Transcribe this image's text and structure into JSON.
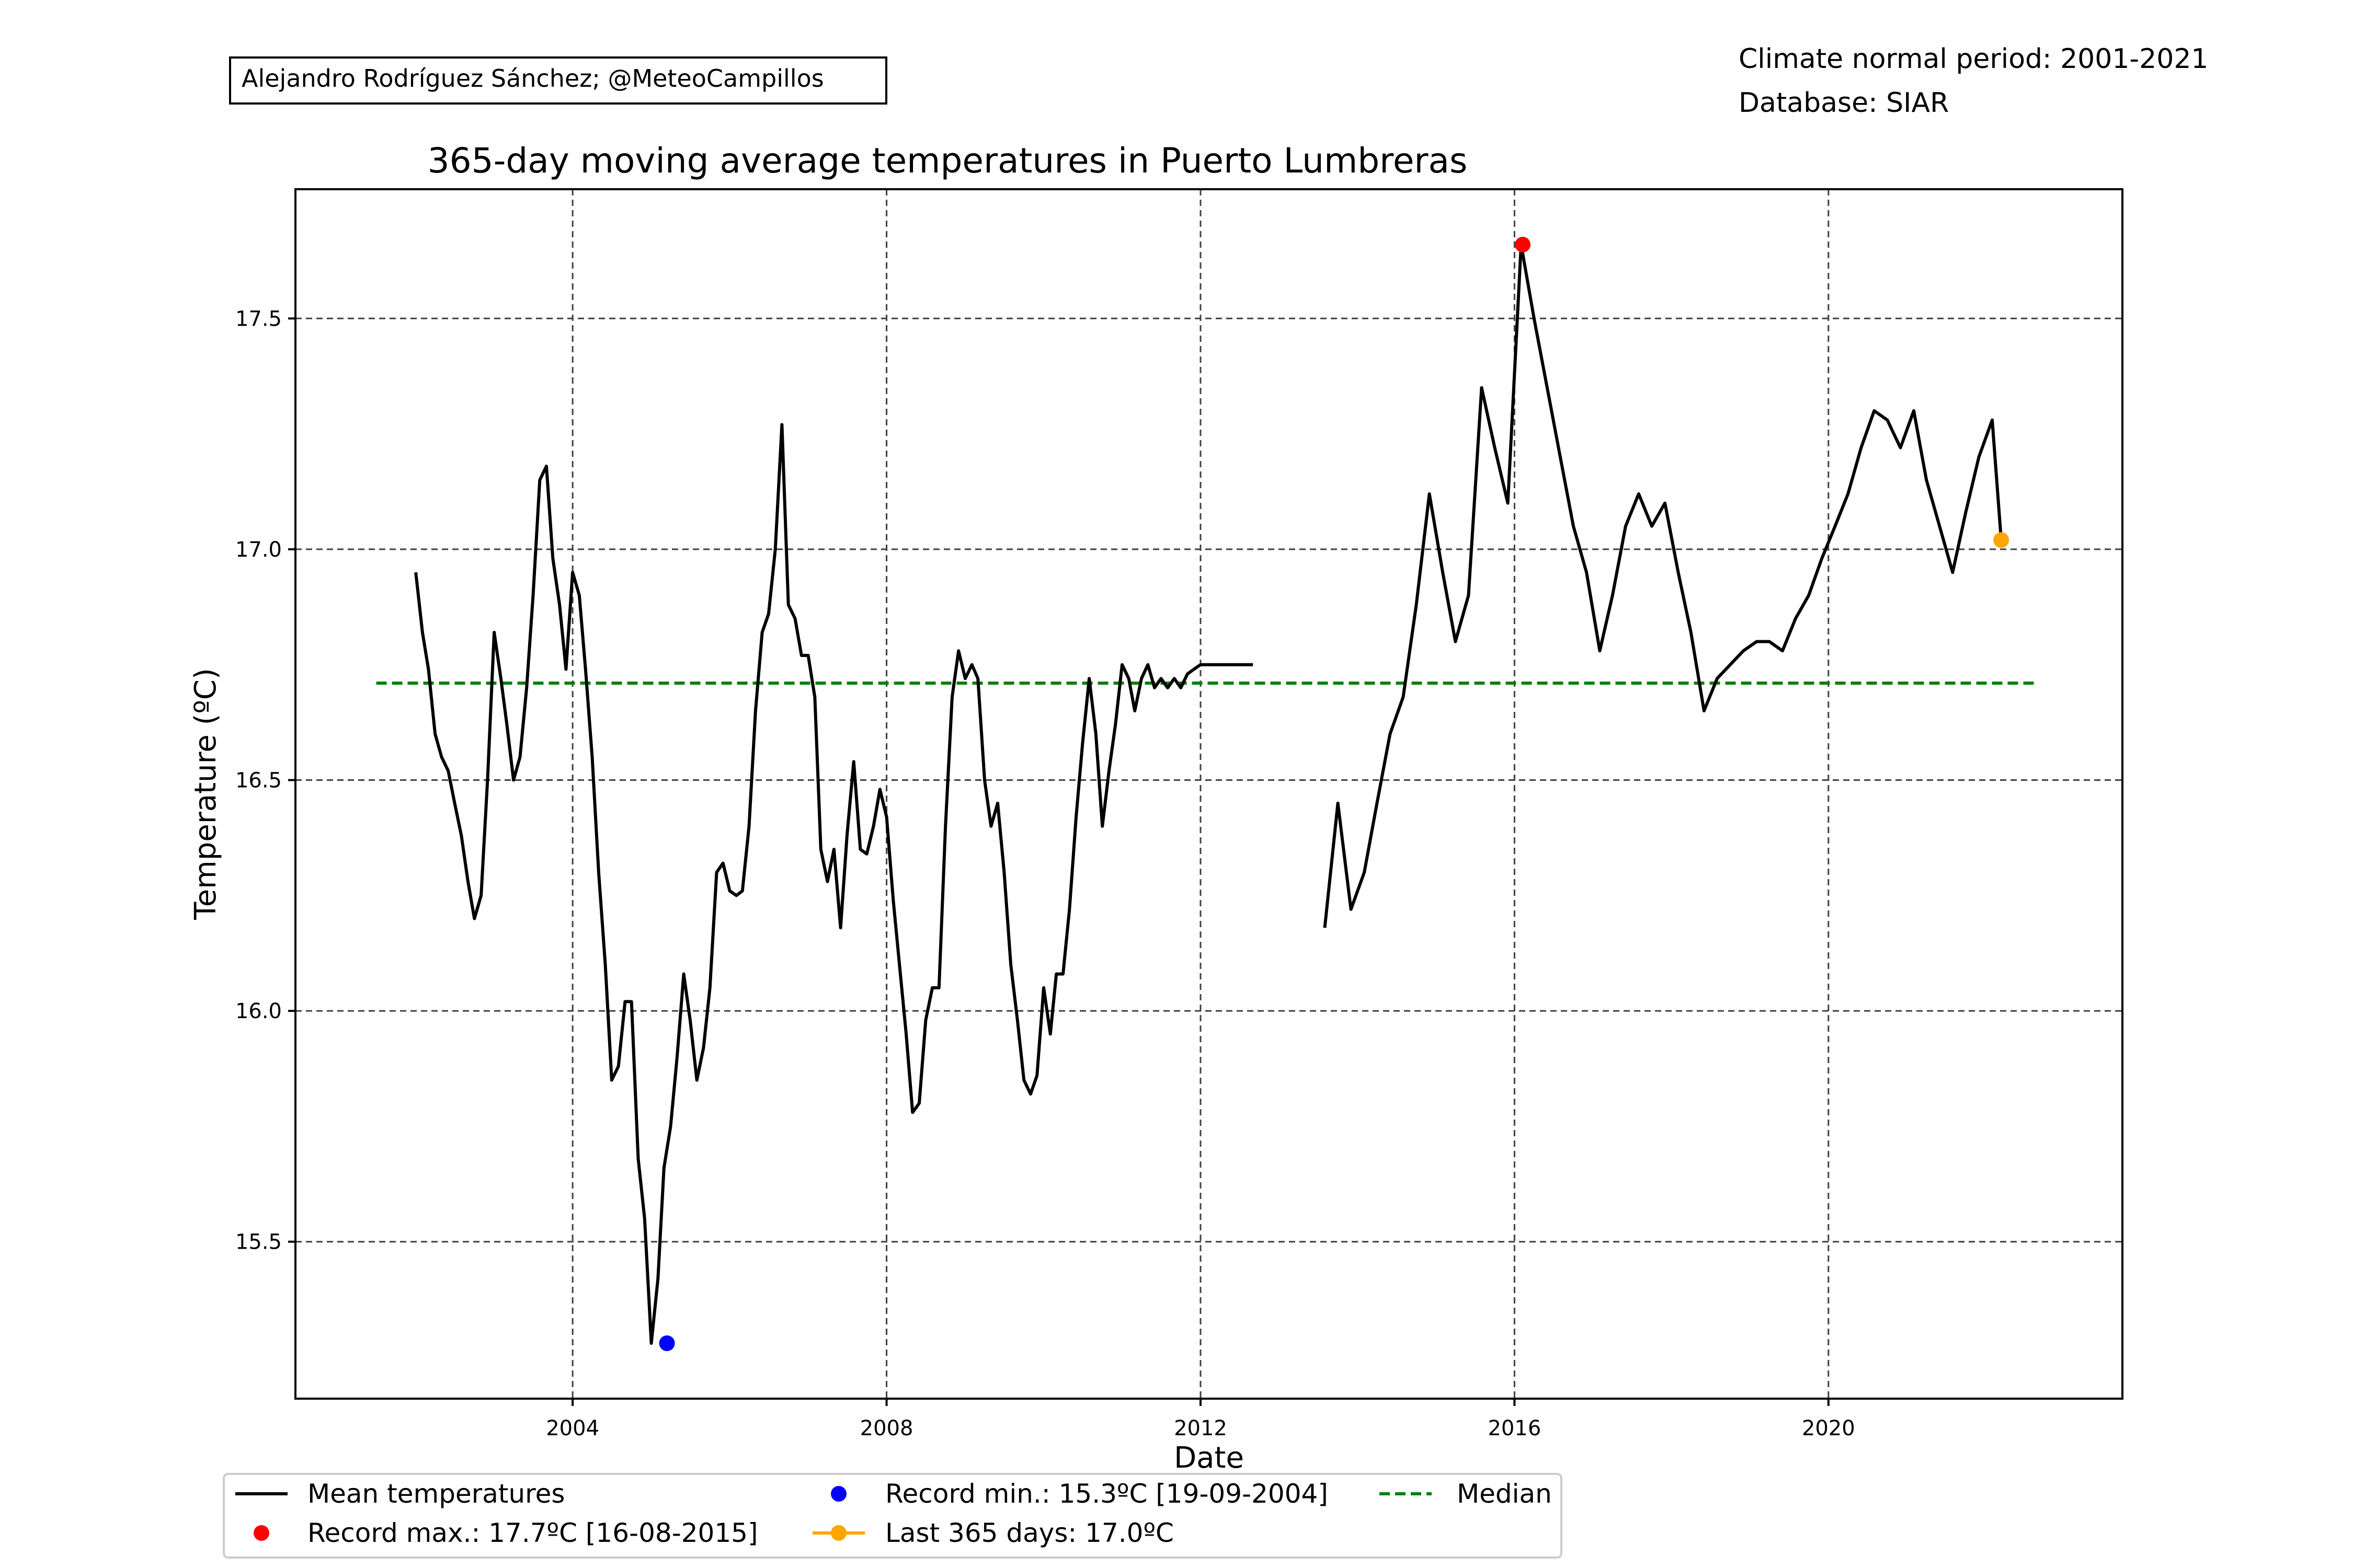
{
  "credit": "Alejandro Rodríguez Sánchez; @MeteoCampillos",
  "info": {
    "line1": "Climate normal period: 2001-2021",
    "line2": "Database: SIAR"
  },
  "colors": {
    "mean": "#000000",
    "record_max": "#ff0000",
    "record_min": "#0000ff",
    "last": "#ffa500",
    "median": "#008000",
    "grid": "#404040"
  },
  "legend": {
    "mean": "Mean temperatures",
    "record_max": "Record max.: 17.7ºC [16-08-2015]",
    "record_min": "Record min.: 15.3ºC [19-09-2004]",
    "last": "Last 365 days: 17.0ºC",
    "median": "Median"
  },
  "chart_data": {
    "type": "line",
    "title": "365-day moving average temperatures in Puerto Lumbreras",
    "xlabel": "Date",
    "ylabel": "Temperature (ºC)",
    "xlim": [
      "2000-06-20",
      "2023-09-30"
    ],
    "ylim": [
      15.16,
      17.78
    ],
    "x_ticks": [
      "2004",
      "2008",
      "2012",
      "2016",
      "2020"
    ],
    "y_ticks": [
      "15.5",
      "16.0",
      "16.5",
      "17.0",
      "17.5"
    ],
    "grid": true,
    "legend_position": "bottom",
    "series": [
      {
        "name": "Mean temperatures",
        "segments": [
          {
            "x": [
              "2002-01-01",
              "2002-02-01",
              "2002-03-01",
              "2002-04-01",
              "2002-05-01",
              "2002-06-01",
              "2002-07-01",
              "2002-08-01",
              "2002-09-01",
              "2002-10-01",
              "2002-11-01",
              "2002-12-01",
              "2003-01-01",
              "2003-02-01",
              "2003-03-01",
              "2003-04-01",
              "2003-05-01",
              "2003-06-01",
              "2003-07-01",
              "2003-08-01",
              "2003-09-01",
              "2003-10-01",
              "2003-11-01",
              "2003-12-01",
              "2004-01-01",
              "2004-02-01",
              "2004-03-01",
              "2004-04-01",
              "2004-05-01",
              "2004-06-01",
              "2004-07-01",
              "2004-08-01",
              "2004-09-01",
              "2004-10-01",
              "2004-11-01",
              "2004-12-01",
              "2005-01-01",
              "2005-02-01",
              "2005-03-01",
              "2005-04-01",
              "2005-05-01",
              "2005-06-01",
              "2005-07-01",
              "2005-08-01",
              "2005-09-01",
              "2005-10-01",
              "2005-11-01",
              "2005-12-01",
              "2006-01-01",
              "2006-02-01",
              "2006-03-01",
              "2006-04-01",
              "2006-05-01",
              "2006-06-01",
              "2006-07-01",
              "2006-08-01",
              "2006-09-01",
              "2006-10-01",
              "2006-11-01",
              "2006-12-01",
              "2007-01-01",
              "2007-02-01",
              "2007-03-01",
              "2007-04-01",
              "2007-05-01",
              "2007-06-01",
              "2007-07-01",
              "2007-08-01",
              "2007-09-01",
              "2007-10-01",
              "2007-11-01",
              "2007-12-01",
              "2008-01-01",
              "2008-02-01",
              "2008-03-01",
              "2008-04-01",
              "2008-05-01",
              "2008-06-01",
              "2008-07-01",
              "2008-08-01",
              "2008-09-01",
              "2008-10-01",
              "2008-11-01",
              "2008-12-01",
              "2009-01-01",
              "2009-02-01",
              "2009-03-01",
              "2009-04-01",
              "2009-05-01",
              "2009-06-01",
              "2009-07-01",
              "2009-08-01",
              "2009-09-01",
              "2009-10-01",
              "2009-11-01",
              "2009-12-01",
              "2010-01-01",
              "2010-02-01",
              "2010-03-01",
              "2010-04-01",
              "2010-05-01",
              "2010-06-01",
              "2010-07-01",
              "2010-08-01",
              "2010-09-01",
              "2010-10-01",
              "2010-11-01",
              "2010-12-01",
              "2011-01-01",
              "2011-02-01",
              "2011-03-01",
              "2011-04-01",
              "2011-05-01",
              "2011-06-01",
              "2011-07-01",
              "2011-08-01",
              "2011-09-01",
              "2011-10-01",
              "2011-11-01",
              "2011-12-01",
              "2012-01-01",
              "2012-02-01",
              "2012-03-01",
              "2012-04-01",
              "2012-05-01",
              "2012-06-01",
              "2012-07-01",
              "2012-08-01",
              "2012-09-01"
            ],
            "y": [
              16.95,
              16.82,
              16.74,
              16.6,
              16.55,
              16.52,
              16.45,
              16.38,
              16.28,
              16.2,
              16.25,
              16.5,
              16.82,
              16.72,
              16.62,
              16.5,
              16.55,
              16.7,
              16.9,
              17.15,
              17.18,
              16.98,
              16.88,
              16.74,
              16.95,
              16.9,
              16.74,
              16.55,
              16.3,
              16.1,
              15.85,
              15.88,
              16.02,
              16.02,
              15.68,
              15.55,
              15.28,
              15.42,
              15.66,
              15.75,
              15.9,
              16.08,
              15.98,
              15.85,
              15.92,
              16.05,
              16.3,
              16.32,
              16.26,
              16.25,
              16.26,
              16.4,
              16.65,
              16.82,
              16.86,
              17.0,
              17.27,
              16.88,
              16.85,
              16.77,
              16.77,
              16.68,
              16.35,
              16.28,
              16.35,
              16.18,
              16.38,
              16.54,
              16.35,
              16.34,
              16.4,
              16.48,
              16.42,
              16.24,
              16.1,
              15.95,
              15.78,
              15.8,
              15.98,
              16.05,
              16.05,
              16.4,
              16.68,
              16.78,
              16.72,
              16.75,
              16.72,
              16.5,
              16.4,
              16.45,
              16.3,
              16.1,
              15.98,
              15.85,
              15.82,
              15.86,
              16.05,
              15.95,
              16.08,
              16.08,
              16.22,
              16.42,
              16.58,
              16.72,
              16.6,
              16.4,
              16.52,
              16.62,
              16.75,
              16.72,
              16.65,
              16.72,
              16.75,
              16.7,
              16.72,
              16.7,
              16.72,
              16.7,
              16.73,
              16.74,
              16.75,
              16.75,
              16.75,
              16.75,
              16.75,
              16.75,
              16.75,
              16.75,
              16.75
            ]
          },
          {
            "x": [
              "2013-08-01",
              "2013-10-01",
              "2013-12-01",
              "2014-02-01",
              "2014-04-01",
              "2014-06-01",
              "2014-08-01",
              "2014-10-01",
              "2014-12-01",
              "2015-02-01",
              "2015-04-01",
              "2015-06-01",
              "2015-08-01",
              "2015-10-01",
              "2015-12-01",
              "2016-02-01",
              "2016-04-01",
              "2016-06-01",
              "2016-08-01",
              "2016-10-01",
              "2016-12-01",
              "2017-02-01",
              "2017-04-01",
              "2017-06-01",
              "2017-08-01",
              "2017-10-01",
              "2017-12-01",
              "2018-02-01",
              "2018-04-01",
              "2018-06-01",
              "2018-08-01",
              "2018-10-01",
              "2018-12-01",
              "2019-02-01",
              "2019-04-01",
              "2019-06-01",
              "2019-08-01",
              "2019-10-01",
              "2019-12-01",
              "2020-02-01",
              "2020-04-01",
              "2020-06-01",
              "2020-08-01",
              "2020-10-01",
              "2020-12-01",
              "2021-02-01",
              "2021-04-01",
              "2021-06-01",
              "2021-08-01",
              "2021-10-01",
              "2021-12-01",
              "2022-02-01",
              "2022-03-15"
            ],
            "y": [
              16.18,
              16.45,
              16.22,
              16.3,
              16.45,
              16.6,
              16.68,
              16.88,
              17.12,
              16.95,
              16.8,
              16.9,
              17.35,
              17.22,
              17.1,
              17.66,
              17.5,
              17.35,
              17.2,
              17.05,
              16.95,
              16.78,
              16.9,
              17.05,
              17.12,
              17.05,
              17.1,
              16.95,
              16.82,
              16.65,
              16.72,
              16.75,
              16.78,
              16.8,
              16.8,
              16.78,
              16.85,
              16.9,
              16.98,
              17.05,
              17.12,
              17.22,
              17.3,
              17.28,
              17.22,
              17.3,
              17.15,
              17.05,
              16.95,
              17.08,
              17.2,
              17.28,
              17.02
            ]
          }
        ]
      },
      {
        "name": "Median",
        "x": [
          "2001-07-01",
          "2022-09-01"
        ],
        "y": [
          16.71,
          16.71
        ]
      }
    ],
    "points": [
      {
        "series": "Record max.",
        "x": "2016-02-08",
        "y": 17.66
      },
      {
        "series": "Record min.",
        "x": "2005-03-15",
        "y": 15.28
      },
      {
        "series": "Last 365 days",
        "x": "2022-03-15",
        "y": 17.02
      }
    ]
  }
}
